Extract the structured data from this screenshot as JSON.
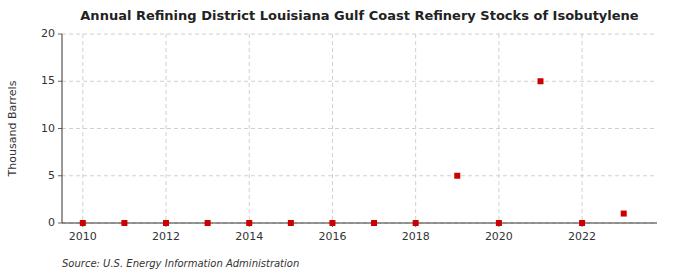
{
  "chart_data": {
    "type": "scatter",
    "title": "Annual Refining District Louisiana Gulf Coast Refinery Stocks of Isobutylene",
    "y_label": "Thousand Barrels",
    "annotations": [
      "Source: U.S. Energy Information Administration"
    ],
    "x": [
      2010,
      2011,
      2012,
      2013,
      2014,
      2015,
      2016,
      2017,
      2018,
      2019,
      2020,
      2021,
      2022,
      2023
    ],
    "values": [
      0,
      0,
      0,
      0,
      0,
      0,
      0,
      0,
      0,
      5,
      0,
      15,
      0,
      1
    ],
    "color": "#cc0000",
    "marker": "square",
    "xlim": [
      2009.5,
      2023.8
    ],
    "ylim": [
      0,
      20
    ],
    "xticks": [
      2010,
      2012,
      2014,
      2016,
      2018,
      2020,
      2022
    ],
    "yticks": [
      0,
      5,
      10,
      15,
      20
    ],
    "grid": true
  }
}
